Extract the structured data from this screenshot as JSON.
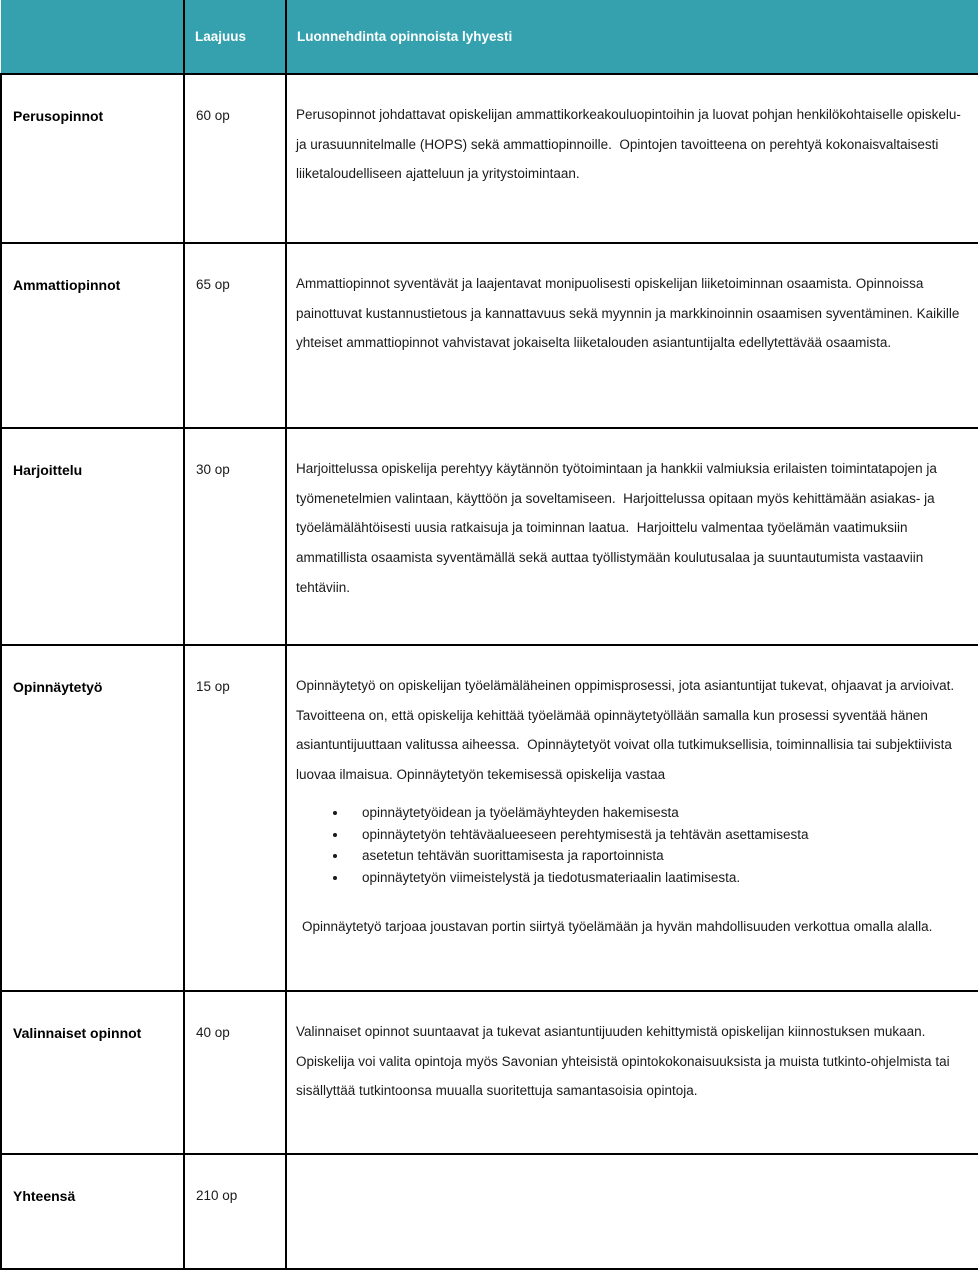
{
  "colors": {
    "header_bg": "#35a1ae",
    "header_text": "#ffffff",
    "border": "#000000",
    "body_text": "#1a1a1a"
  },
  "table": {
    "header": {
      "category": "",
      "extent": "Laajuus",
      "description": "Luonnehdinta opinnoista lyhyesti"
    },
    "rows": [
      {
        "label": "Perusopinnot",
        "extent": "60 op",
        "paragraph": "Perusopinnot johdattavat opiskelijan ammattikorkeakouluopintoihin ja luovat pohjan henkilökohtaiselle opiskelu- ja urasuunnitelmalle (HOPS) sekä ammattiopinnoille.  Opintojen tavoitteena on perehtyä kokonaisvaltaisesti liiketaloudelliseen ajatteluun ja yritystoimintaan."
      },
      {
        "label": "Ammattiopinnot",
        "extent": "65 op",
        "paragraph": "Ammattiopinnot syventävät ja laajentavat monipuolisesti opiskelijan liiketoiminnan osaamista. Opinnoissa painottuvat kustannustietous ja kannattavuus sekä myynnin ja markkinoinnin osaamisen syventäminen. Kaikille yhteiset ammattiopinnot vahvistavat jokaiselta liiketalouden asiantuntijalta edellytettävää osaamista."
      },
      {
        "label": "Harjoittelu",
        "extent": "30 op",
        "paragraph": "Harjoittelussa opiskelija perehtyy käytännön työtoimintaan ja hankkii valmiuksia erilaisten toimintatapojen ja työmenetelmien valintaan, käyttöön ja soveltamiseen.  Harjoittelussa opitaan myös kehittämään asiakas- ja työelämälähtöisesti uusia ratkaisuja ja toiminnan laatua.  Harjoittelu valmentaa työelämän vaatimuksiin ammatillista osaamista syventämällä sekä auttaa työllistymään koulutusalaa ja suuntautumista vastaaviin tehtäviin."
      },
      {
        "label": "Opinnäytetyö",
        "extent": "15 op",
        "paragraph": "Opinnäytetyö on opiskelijan työelämäläheinen oppimisprosessi, jota asiantuntijat tukevat, ohjaavat ja arvioivat. Tavoitteena on, että opiskelija kehittää työelämää opinnäytetyöllään samalla kun prosessi syventää hänen asiantuntijuuttaan valitussa aiheessa.  Opinnäytetyöt voivat olla tutkimuksellisia, toiminnallisia tai subjektiivista luovaa ilmaisua. Opinnäytetyön tekemisessä opiskelija vastaa",
        "bullets": [
          "opinnäytetyöidean ja työelämäyhteyden hakemisesta",
          "opinnäytetyön tehtäväalueeseen perehtymisestä ja tehtävän asettamisesta",
          "asetetun tehtävän suorittamisesta ja raportoinnista",
          "opinnäytetyön viimeistelystä ja tiedotusmateriaalin laatimisesta."
        ],
        "closing": "Opinnäytetyö tarjoaa joustavan portin siirtyä työelämään ja hyvän mahdollisuuden verkottua omalla alalla."
      },
      {
        "label": "Valinnaiset opinnot",
        "extent": "40 op",
        "paragraph": "Valinnaiset opinnot suuntaavat ja tukevat asiantuntijuuden kehittymistä opiskelijan kiinnostuksen mukaan. Opiskelija voi valita opintoja myös Savonian yhteisistä opintokokonaisuuksista ja muista tutkinto-ohjelmista tai sisällyttää tutkintoonsa muualla suoritettuja samantasoisia opintoja."
      },
      {
        "label": "Yhteensä",
        "extent": "210 op",
        "paragraph": ""
      }
    ]
  }
}
